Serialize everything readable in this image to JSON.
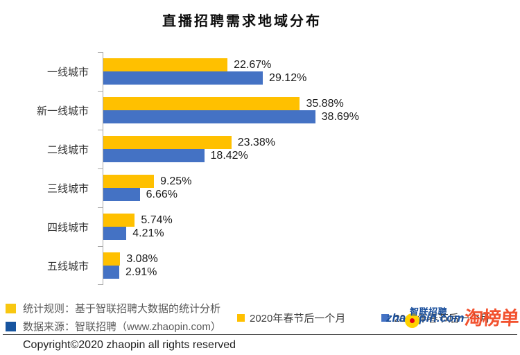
{
  "title": "直播招聘需求地域分布",
  "chart_data": {
    "type": "bar",
    "orientation": "horizontal",
    "title": "直播招聘需求地域分布",
    "categories": [
      "一线城市",
      "新一线城市",
      "二线城市",
      "三线城市",
      "四线城市",
      "五线城市"
    ],
    "series": [
      {
        "name": "2020年春节后一个月",
        "color": "#FFC000",
        "values": [
          22.67,
          35.88,
          23.38,
          9.25,
          5.74,
          3.08
        ]
      },
      {
        "name": "2019年春节后一个月",
        "color": "#4472C4",
        "values": [
          29.12,
          38.69,
          18.42,
          6.66,
          4.21,
          2.91
        ]
      }
    ],
    "value_suffix": "%",
    "xlim": [
      0,
      40
    ],
    "grid": false,
    "legend_position": "inside-bottom-right",
    "axis_color": "#A6A6A6"
  },
  "footnotes": [
    {
      "marker": "yellow-square",
      "marker_color": "#F8C711",
      "text": "统计规则：基于智联招聘大数据的统计分析"
    },
    {
      "marker": "blue-square",
      "marker_color": "#17549F",
      "text": "数据来源：智联招聘（www.zhaopin.com）"
    }
  ],
  "branding": {
    "zhaopin_en_prefix": "zha",
    "zhaopin_en_suffix": "pin.com",
    "zhaopin_cn": "智联招聘",
    "taobangdan": "淘榜单",
    "zhaopin_blue": "#1A4F9C",
    "taobangdan_orange": "#F2512E",
    "ball_yellow": "#FFD200",
    "ball_dot_red": "#E60012"
  },
  "copyright": "Copyright©2020 zhaopin all rights reserved"
}
